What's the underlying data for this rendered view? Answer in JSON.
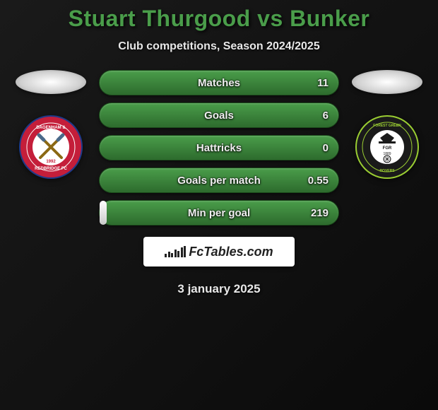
{
  "title": "Stuart Thurgood vs Bunker",
  "subtitle": "Club competitions, Season 2024/2025",
  "colors": {
    "accent_green": "#4a9d4a",
    "bar_green_top": "#4a9d4a",
    "bar_green_bottom": "#2d6b2d",
    "fill_light_top": "#ffffff",
    "fill_light_bottom": "#c9c9c9",
    "text_light": "#e8e8e8",
    "background": "#0a0a0a"
  },
  "left_club": {
    "name": "Dagenham & Redbridge FC",
    "year": "1992",
    "badge_bg": "#c41e3a",
    "badge_ring": "#1e3a8a"
  },
  "right_club": {
    "name": "Forest Green Rovers",
    "year": "1889",
    "badge_bg": "#1a1a1a",
    "badge_ring": "#9acd32"
  },
  "stats": [
    {
      "label": "Matches",
      "value": "11",
      "fill_pct": 0
    },
    {
      "label": "Goals",
      "value": "6",
      "fill_pct": 0
    },
    {
      "label": "Hattricks",
      "value": "0",
      "fill_pct": 0
    },
    {
      "label": "Goals per match",
      "value": "0.55",
      "fill_pct": 0
    },
    {
      "label": "Min per goal",
      "value": "219",
      "fill_pct": 3
    }
  ],
  "brand": "FcTables.com",
  "date": "3 january 2025"
}
